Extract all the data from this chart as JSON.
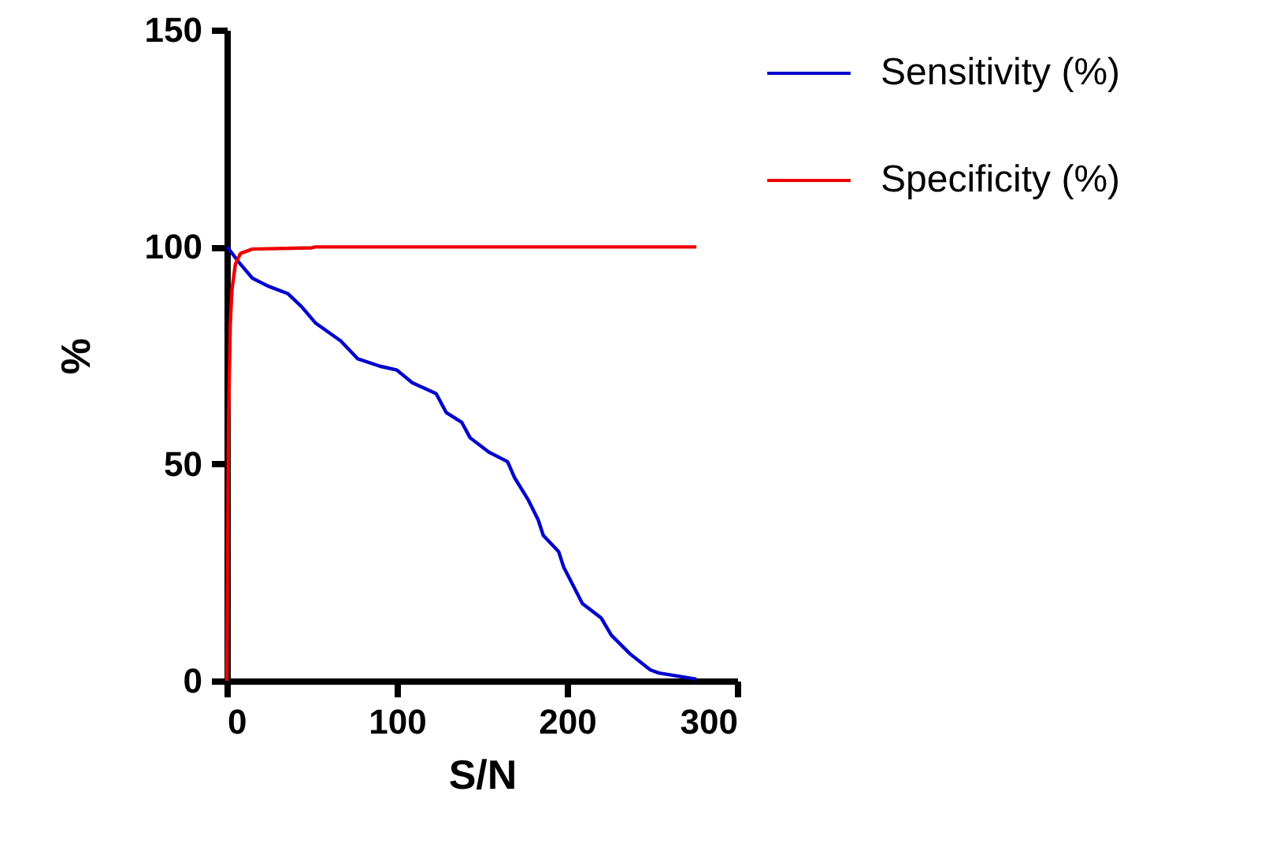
{
  "chart_data": {
    "type": "line",
    "xlabel": "S/N",
    "ylabel": "%",
    "xlim": [
      0,
      300
    ],
    "xticks": [
      0,
      100,
      200,
      300
    ],
    "ylim": [
      0,
      150
    ],
    "yticks": [
      0,
      50,
      100,
      150
    ],
    "grid": false,
    "legend": "top right",
    "marker": "none",
    "line_style": "solid",
    "series": [
      {
        "name": "Sensitivity (%)",
        "color": "#0000cc",
        "x": [
          0,
          1,
          7,
          15,
          24,
          36,
          44,
          52,
          67,
          77,
          90,
          100,
          109,
          123,
          129,
          138,
          143,
          154,
          165,
          169,
          177,
          183,
          186,
          195,
          198,
          209,
          220,
          226,
          237,
          249,
          254,
          276
        ],
        "values": [
          100,
          99.6,
          96.5,
          92.8,
          91,
          89.2,
          86.2,
          82.5,
          78.3,
          74.2,
          72.5,
          71.6,
          68.7,
          66.2,
          61.8,
          59.6,
          56,
          52.7,
          50.5,
          46.9,
          41.8,
          37.1,
          33.5,
          29.8,
          26.2,
          17.8,
          14.5,
          10.5,
          6.2,
          2.5,
          1.8,
          0.4
        ]
      },
      {
        "name": "Specificity (%)",
        "color": "#ee0000",
        "x": [
          0,
          0.5,
          1,
          2,
          3,
          5,
          8,
          15,
          50,
          52,
          276
        ],
        "values": [
          0,
          30,
          60,
          82,
          90,
          96,
          98.5,
          99.5,
          99.8,
          100,
          100
        ]
      }
    ]
  }
}
